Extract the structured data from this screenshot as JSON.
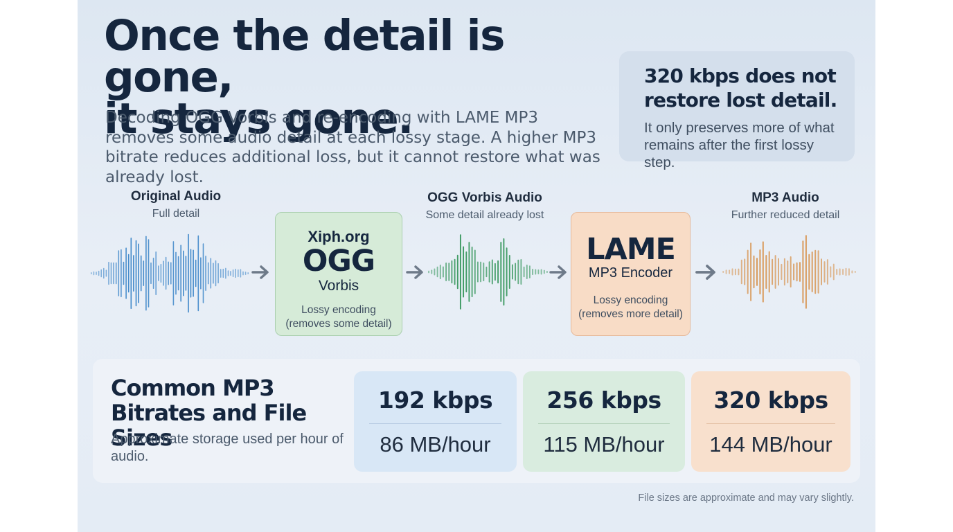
{
  "headline": {
    "line1": "Once the detail is gone,",
    "line2": "it stays gone."
  },
  "intro": "Decoding OGG Vorbis and re-encoding with LAME MP3 removes some audio detail at each lossy stage. A higher MP3 bitrate reduces additional loss, but it cannot restore what was already lost.",
  "callout": {
    "title": "320 kbps does not restore lost detail.",
    "text": "It only preserves more of what remains after the first lossy step."
  },
  "stages": {
    "original": {
      "title": "Original Audio",
      "subtitle": "Full detail"
    },
    "ogg": {
      "title": "OGG Vorbis Audio",
      "subtitle": "Some detail already lost"
    },
    "mp3": {
      "title": "MP3 Audio",
      "subtitle": "Further reduced detail"
    }
  },
  "codecs": {
    "ogg": {
      "brand": "Xiph.org",
      "name": "OGG",
      "variant": "Vorbis",
      "desc_line1": "Lossy encoding",
      "desc_line2": "(removes some detail)"
    },
    "lame": {
      "name": "LAME",
      "variant": "MP3 Encoder",
      "desc_line1": "Lossy encoding",
      "desc_line2": "(removes more detail)"
    }
  },
  "bitrates": {
    "title": "Common MP3 Bitrates and File Sizes",
    "subtitle": "Approximate storage used per hour of audio.",
    "cards": [
      {
        "rate": "192  kbps",
        "size": "86 MB/hour",
        "bg": "#d8e7f6",
        "divider": "#b9cde3"
      },
      {
        "rate": "256  kbps",
        "size": "115 MB/hour",
        "bg": "#d9ecdf",
        "divider": "#b6d3bd"
      },
      {
        "rate": "320  kbps",
        "size": "144 MB/hour",
        "bg": "#f8e0cd",
        "divider": "#e6c3a8"
      }
    ]
  },
  "footnote": "File sizes are approximate and may vary slightly.",
  "colors": {
    "wave_original": "#3d86c9",
    "wave_ogg": "#3d9a62",
    "wave_mp3": "#d99a5b",
    "arrow": "#6e7a89"
  },
  "icons": {
    "arrow": "right-arrow-icon"
  }
}
